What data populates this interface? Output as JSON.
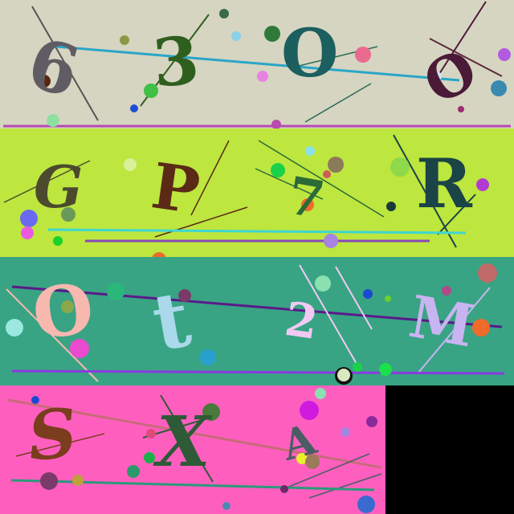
{
  "rows": [
    {
      "background": "#d6d5c1",
      "chars": [
        "6",
        "3",
        "O",
        "O"
      ],
      "colors": [
        "#5f5d63",
        "#2f5f1f",
        "#1b5f5e",
        "#4a1a37"
      ]
    },
    {
      "background": "#bde63f",
      "chars": [
        "G",
        "P",
        "7",
        "R"
      ],
      "colors": [
        "#4b4a2d",
        "#5a2a16",
        "#2c6a37",
        "#1a4446"
      ]
    },
    {
      "background": "#38a483",
      "chars": [
        "O",
        "t",
        "2",
        "M"
      ],
      "colors": [
        "#f7b8b0",
        "#a9d9ea",
        "#f1c9f3",
        "#c9b4f2"
      ]
    },
    {
      "background": "#fe5fbf",
      "chars": [
        "S",
        "X",
        "A"
      ],
      "colors": [
        "#7a3d1d",
        "#2f5a37",
        "#4a5d64"
      ]
    }
  ]
}
